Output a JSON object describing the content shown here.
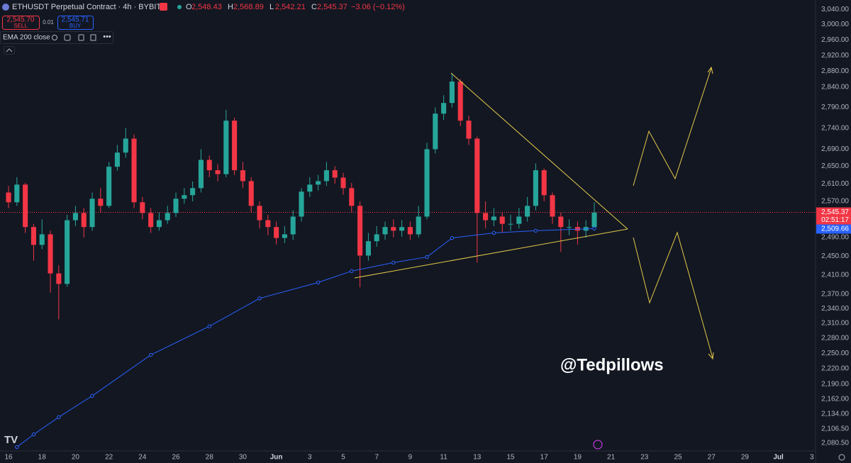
{
  "header": {
    "symbol": "ETHUSDT Perpetual Contract · 4h · BYBIT",
    "ohlc": [
      {
        "label": "O",
        "value": "2,548.43"
      },
      {
        "label": "H",
        "value": "2,568.89"
      },
      {
        "label": "L",
        "value": "2,542.21"
      },
      {
        "label": "C",
        "value": "2,545.37"
      }
    ],
    "change": "−3.06 (−0.12%)",
    "sell_price": "2,545.70",
    "sell": "SELL",
    "spread": "0.01",
    "buy_price": "2,545.71",
    "buy": "BUY"
  },
  "watermark": "@Tedpillows",
  "chart_data": {
    "type": "candlestick",
    "log_scale": true,
    "grid": false,
    "up_color": "#26a69a",
    "down_color": "#f23645",
    "x": [
      0,
      0.5,
      1,
      1.5,
      2,
      2.5,
      3,
      3.5,
      4,
      4.5,
      5,
      5.5,
      6,
      6.5,
      7,
      7.5,
      8,
      8.5,
      9,
      9.5,
      10,
      10.5,
      11,
      11.5,
      12,
      12.5,
      13,
      13.5,
      14,
      14.5,
      15,
      15.5,
      16,
      16.5,
      17,
      17.5,
      18,
      18.5,
      19,
      19.5,
      20,
      20.5,
      21,
      21.5,
      22,
      22.5,
      23,
      23.5,
      24,
      24.5,
      25,
      25.5,
      26,
      26.5,
      27,
      27.5,
      28,
      28.5,
      29,
      29.5,
      30,
      30.5,
      31,
      31.5,
      32,
      32.5,
      33,
      33.5,
      34,
      34.5,
      35
    ],
    "open": [
      2590,
      2568,
      2608,
      2513,
      2474,
      2497,
      2413,
      2391,
      2528,
      2544,
      2513,
      2576,
      2560,
      2649,
      2682,
      2715,
      2568,
      2544,
      2513,
      2528,
      2544,
      2576,
      2584,
      2600,
      2665,
      2641,
      2632,
      2758,
      2641,
      2616,
      2560,
      2528,
      2513,
      2489,
      2497,
      2536,
      2592,
      2608,
      2616,
      2641,
      2624,
      2600,
      2560,
      2451,
      2482,
      2497,
      2513,
      2505,
      2513,
      2497,
      2536,
      2690,
      2775,
      2801,
      2854,
      2758,
      2715,
      2544,
      2528,
      2536,
      2520,
      2520,
      2536,
      2560,
      2641,
      2584,
      2536,
      2513,
      2513,
      2505,
      2513
    ],
    "high": [
      2605,
      2625,
      2612,
      2520,
      2530,
      2505,
      2430,
      2540,
      2560,
      2555,
      2590,
      2600,
      2660,
      2700,
      2740,
      2725,
      2580,
      2555,
      2545,
      2560,
      2590,
      2600,
      2615,
      2690,
      2675,
      2655,
      2784,
      2765,
      2660,
      2625,
      2570,
      2540,
      2525,
      2515,
      2550,
      2600,
      2625,
      2630,
      2660,
      2650,
      2635,
      2612,
      2570,
      2500,
      2515,
      2525,
      2530,
      2528,
      2525,
      2560,
      2705,
      2790,
      2820,
      2875,
      2860,
      2770,
      2720,
      2570,
      2555,
      2545,
      2540,
      2555,
      2580,
      2657,
      2645,
      2590,
      2545,
      2530,
      2525,
      2528,
      2568
    ],
    "low": [
      2555,
      2560,
      2500,
      2440,
      2465,
      2373,
      2318,
      2385,
      2515,
      2490,
      2505,
      2545,
      2555,
      2640,
      2670,
      2555,
      2530,
      2500,
      2505,
      2520,
      2535,
      2565,
      2570,
      2590,
      2625,
      2615,
      2625,
      2630,
      2600,
      2545,
      2510,
      2495,
      2475,
      2478,
      2485,
      2525,
      2580,
      2595,
      2605,
      2610,
      2585,
      2545,
      2384,
      2440,
      2470,
      2485,
      2490,
      2492,
      2485,
      2490,
      2530,
      2680,
      2760,
      2790,
      2745,
      2700,
      2436,
      2510,
      2515,
      2500,
      2505,
      2510,
      2525,
      2550,
      2570,
      2520,
      2459,
      2495,
      2475,
      2490,
      2505
    ],
    "close": [
      2568,
      2608,
      2513,
      2474,
      2497,
      2413,
      2391,
      2528,
      2544,
      2513,
      2576,
      2560,
      2649,
      2682,
      2715,
      2568,
      2544,
      2513,
      2528,
      2544,
      2576,
      2584,
      2600,
      2665,
      2641,
      2632,
      2758,
      2641,
      2616,
      2560,
      2528,
      2513,
      2489,
      2497,
      2536,
      2592,
      2608,
      2616,
      2641,
      2624,
      2600,
      2560,
      2451,
      2482,
      2497,
      2513,
      2505,
      2513,
      2497,
      2536,
      2690,
      2775,
      2801,
      2854,
      2758,
      2715,
      2544,
      2528,
      2536,
      2520,
      2520,
      2536,
      2560,
      2641,
      2584,
      2536,
      2513,
      2513,
      2505,
      2513,
      2545
    ],
    "overlays": [
      {
        "name": "EMA 200 close",
        "color": "#2962ff",
        "x": [
          0.5,
          1.5,
          3,
          5,
          8.5,
          12,
          15,
          18.5,
          20.5,
          23,
          25,
          26.5,
          29,
          31.5,
          35
        ],
        "values": [
          2073,
          2096,
          2128,
          2168,
          2247,
          2304,
          2361,
          2394,
          2418,
          2436,
          2448,
          2489,
          2500,
          2505,
          2509.66
        ]
      }
    ],
    "last_price": {
      "value": 2545.37,
      "label": "2,545.37",
      "countdown": "02:51:17",
      "color": "#f23645"
    },
    "ema_last": {
      "value": 2509.66,
      "label": "2,509.66",
      "color": "#2962ff"
    },
    "xlim": [
      -0.51,
      48.22
    ],
    "ylim": [
      2066,
      3065
    ],
    "yticks": [
      {
        "value": 3040,
        "label": "3,040.00"
      },
      {
        "value": 3000,
        "label": "3,000.00"
      },
      {
        "value": 2960,
        "label": "2,960.00"
      },
      {
        "value": 2920,
        "label": "2,920.00"
      },
      {
        "value": 2880,
        "label": "2,880.00"
      },
      {
        "value": 2840,
        "label": "2,840.00"
      },
      {
        "value": 2790,
        "label": "2,790.00"
      },
      {
        "value": 2740,
        "label": "2,740.00"
      },
      {
        "value": 2690,
        "label": "2,690.00"
      },
      {
        "value": 2650,
        "label": "2,650.00"
      },
      {
        "value": 2610,
        "label": "2,610.00"
      },
      {
        "value": 2570,
        "label": "2,570.00"
      },
      {
        "value": 2490,
        "label": "2,490.00"
      },
      {
        "value": 2450,
        "label": "2,450.00"
      },
      {
        "value": 2410,
        "label": "2,410.00"
      },
      {
        "value": 2370,
        "label": "2,370.00"
      },
      {
        "value": 2340,
        "label": "2,340.00"
      },
      {
        "value": 2310,
        "label": "2,310.00"
      },
      {
        "value": 2280,
        "label": "2,280.00"
      },
      {
        "value": 2250,
        "label": "2,250.00"
      },
      {
        "value": 2220,
        "label": "2,220.00"
      },
      {
        "value": 2190,
        "label": "2,190.00"
      },
      {
        "value": 2162,
        "label": "2,162.00"
      },
      {
        "value": 2134,
        "label": "2,134.00"
      },
      {
        "value": 2106.5,
        "label": "2,106.50"
      },
      {
        "value": 2080.5,
        "label": "2,080.50"
      }
    ],
    "xticks": [
      {
        "value": 0,
        "label": "16"
      },
      {
        "value": 2,
        "label": "18"
      },
      {
        "value": 4,
        "label": "20"
      },
      {
        "value": 6,
        "label": "22"
      },
      {
        "value": 8,
        "label": "24"
      },
      {
        "value": 10,
        "label": "26"
      },
      {
        "value": 12,
        "label": "28"
      },
      {
        "value": 14,
        "label": "30"
      },
      {
        "value": 16,
        "label": "Jun"
      },
      {
        "value": 18,
        "label": "3"
      },
      {
        "value": 20,
        "label": "5"
      },
      {
        "value": 22,
        "label": "7"
      },
      {
        "value": 24,
        "label": "9"
      },
      {
        "value": 26,
        "label": "11"
      },
      {
        "value": 28,
        "label": "13"
      },
      {
        "value": 30,
        "label": "15"
      },
      {
        "value": 32,
        "label": "17"
      },
      {
        "value": 34,
        "label": "19"
      },
      {
        "value": 36,
        "label": "21"
      },
      {
        "value": 38,
        "label": "23"
      },
      {
        "value": 40,
        "label": "25"
      },
      {
        "value": 42,
        "label": "27"
      },
      {
        "value": 44,
        "label": "29"
      },
      {
        "value": 46,
        "label": "Jul"
      },
      {
        "value": 48,
        "label": "3"
      }
    ]
  }
}
